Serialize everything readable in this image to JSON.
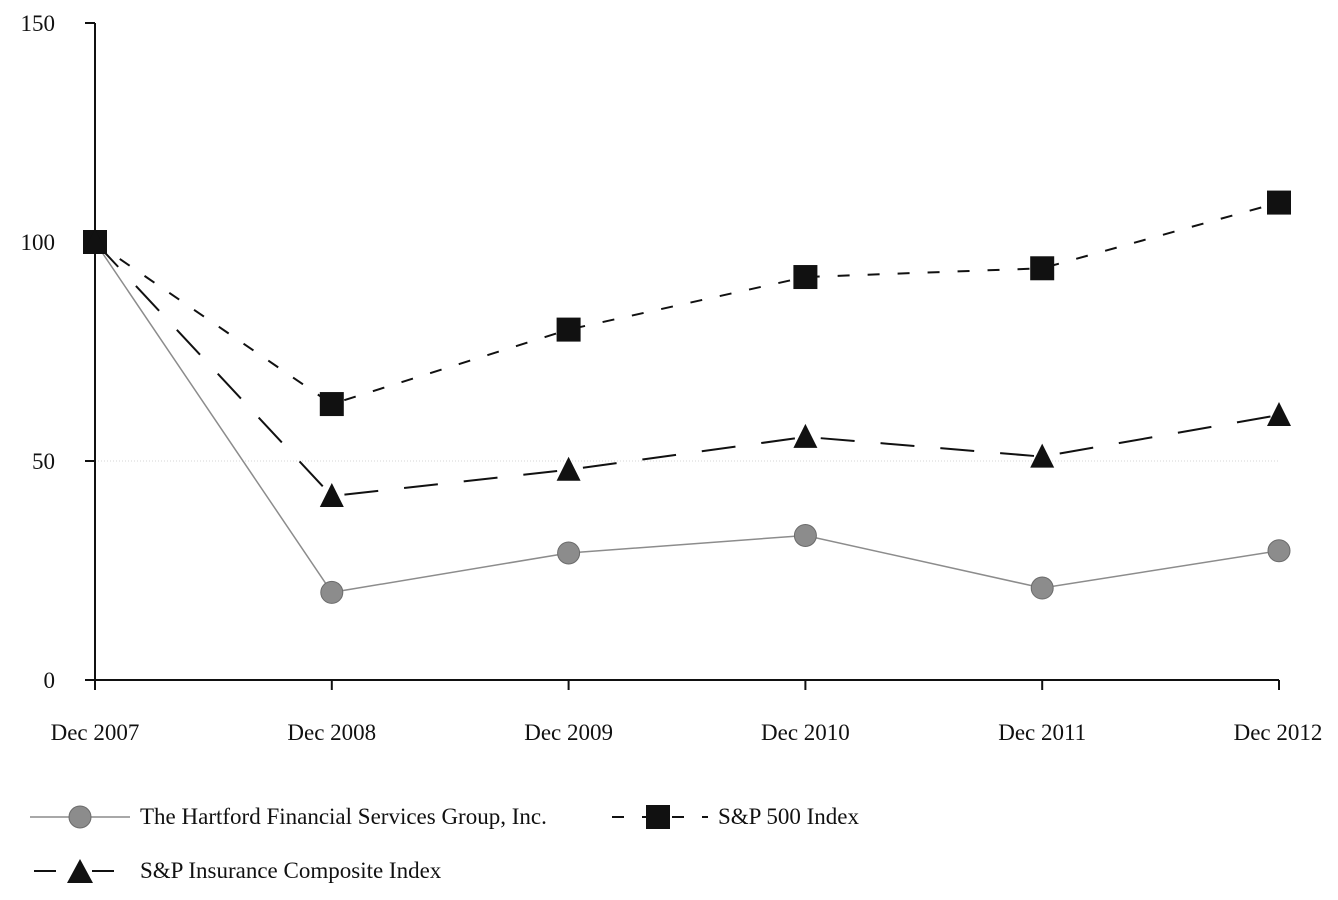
{
  "chart_data": {
    "type": "line",
    "categories": [
      "Dec 2007",
      "Dec 2008",
      "Dec 2009",
      "Dec 2010",
      "Dec 2011",
      "Dec 2012"
    ],
    "ylim": [
      0,
      150
    ],
    "yticks": [
      0,
      50,
      100,
      150
    ],
    "grid": "horizontal at 50",
    "legend_position": "bottom",
    "series": [
      {
        "name": "The Hartford Financial Services Group, Inc.",
        "marker": "circle",
        "line_style": "solid",
        "color": "#8c8c8c",
        "values": [
          100,
          20,
          29,
          33,
          21,
          29.5
        ]
      },
      {
        "name": "S&P 500 Index",
        "marker": "square",
        "line_style": "short-dash",
        "color": "#111111",
        "values": [
          100,
          63,
          80,
          92,
          94,
          109
        ]
      },
      {
        "name": "S&P Insurance Composite Index",
        "marker": "triangle",
        "line_style": "long-dash",
        "color": "#111111",
        "values": [
          100,
          42,
          48,
          55.5,
          51,
          60.5
        ]
      }
    ]
  }
}
